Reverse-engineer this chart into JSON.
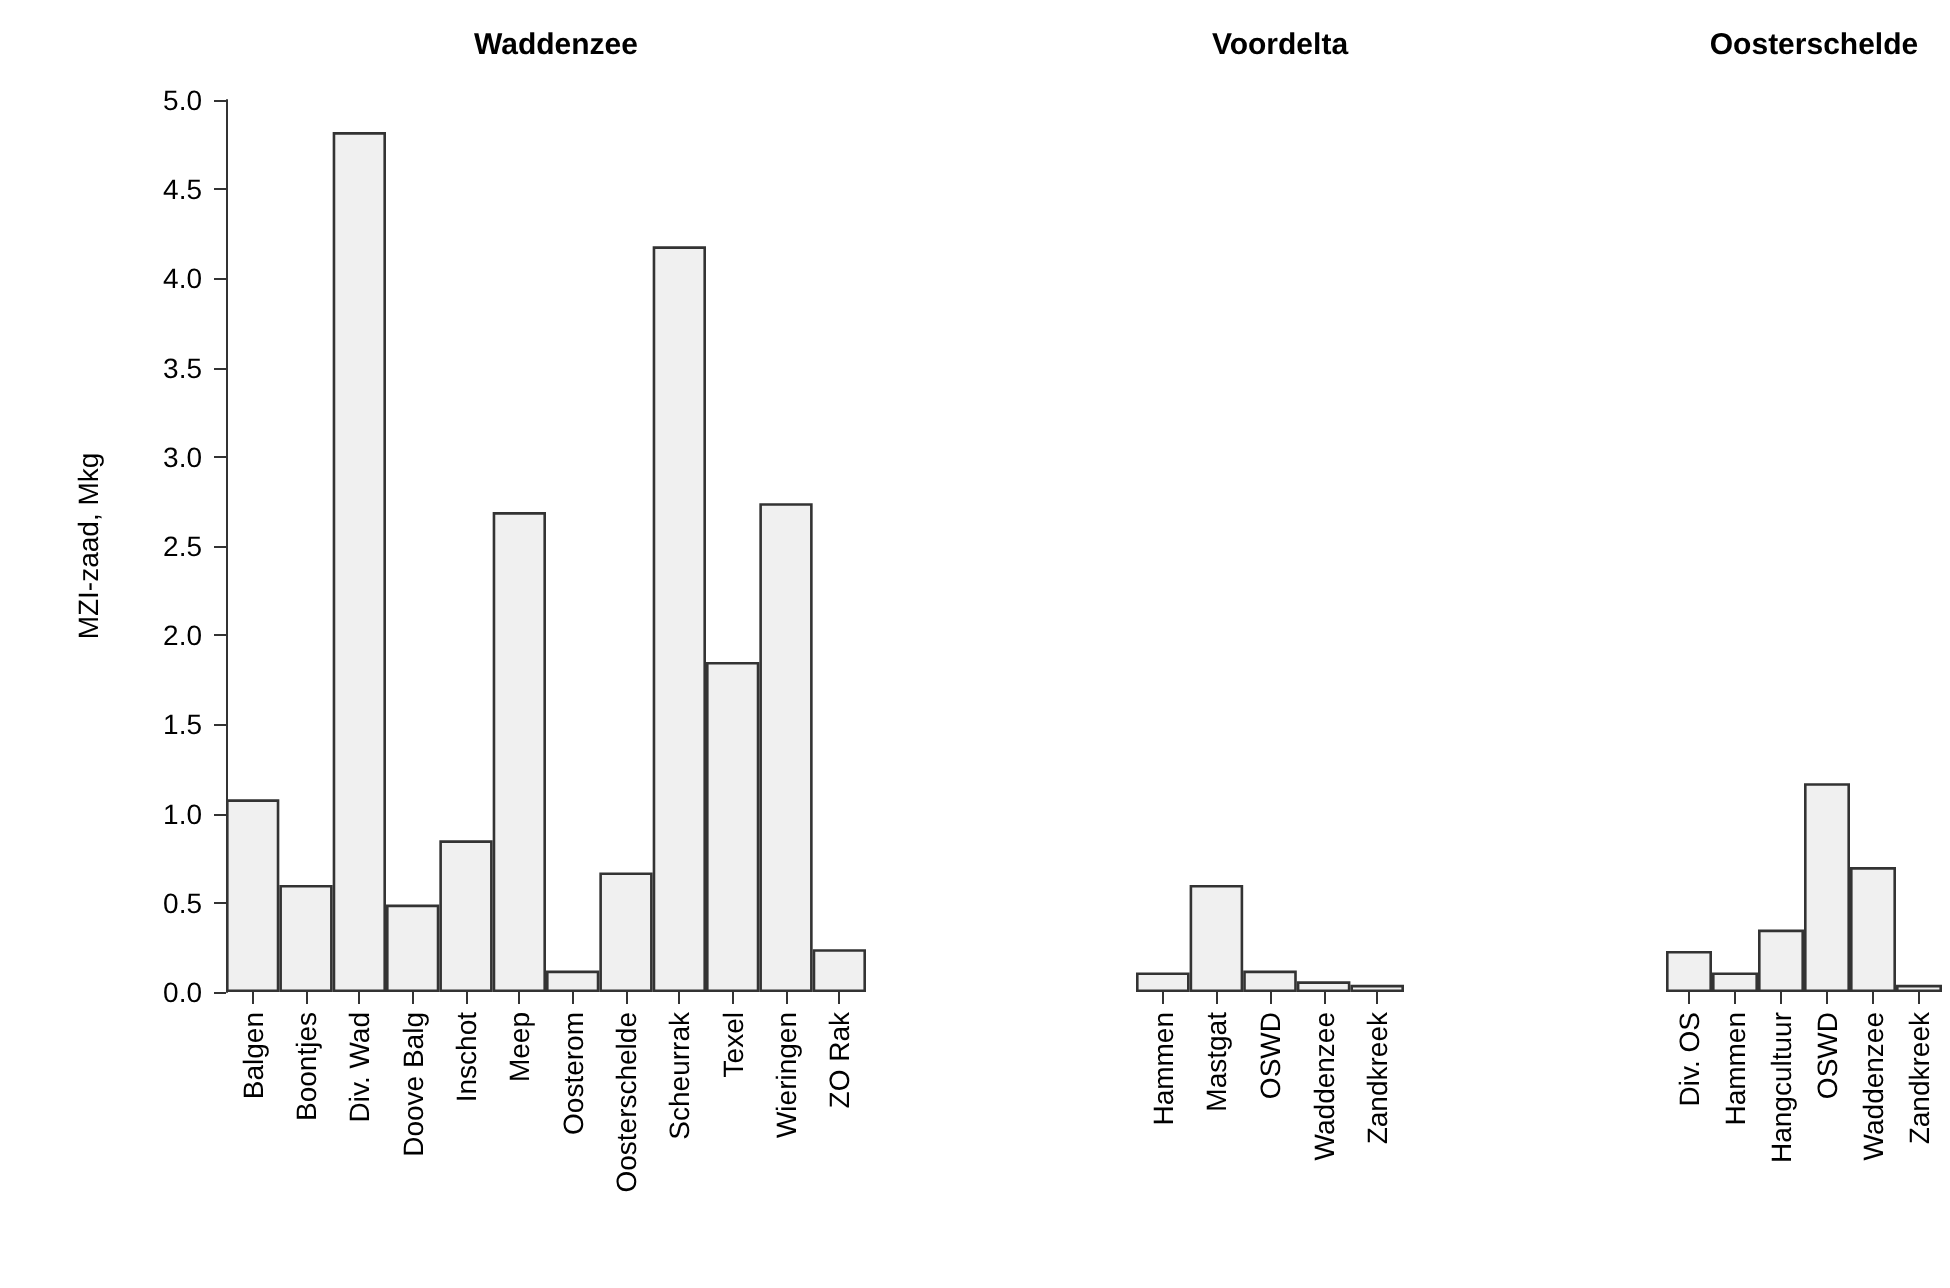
{
  "chart_data": [
    {
      "type": "bar",
      "title": "Waddenzee",
      "ylabel": "MZI-zaad, Mkg",
      "categories": [
        "Balgen",
        "Boontjes",
        "Div. Wad",
        "Doove Balg",
        "Inschot",
        "Meep",
        "Oosterom",
        "Oosterschelde",
        "Scheurrak",
        "Texel",
        "Wieringen",
        "ZO Rak"
      ],
      "values": [
        1.08,
        0.6,
        4.82,
        0.49,
        0.85,
        2.69,
        0.12,
        0.67,
        4.18,
        1.85,
        2.74,
        0.24
      ],
      "color": "#f0f0f0",
      "ylim": [
        0,
        5
      ],
      "yticks": [
        {
          "value": 0,
          "label": "0.0"
        },
        {
          "value": 0.5,
          "label": "0.5"
        },
        {
          "value": 1,
          "label": "1.0"
        },
        {
          "value": 1.5,
          "label": "1.5"
        },
        {
          "value": 2,
          "label": "2.0"
        },
        {
          "value": 2.5,
          "label": "2.5"
        },
        {
          "value": 3,
          "label": "3.0"
        },
        {
          "value": 3.5,
          "label": "3.5"
        },
        {
          "value": 4,
          "label": "4.0"
        },
        {
          "value": 4.5,
          "label": "4.5"
        },
        {
          "value": 5,
          "label": "5.0"
        }
      ]
    },
    {
      "type": "bar",
      "title": "Voordelta",
      "categories": [
        "Hammen",
        "Mastgat",
        "OSWD",
        "Waddenzee",
        "Zandkreek"
      ],
      "values": [
        0.11,
        0.6,
        0.12,
        0.06,
        0.04
      ],
      "color": "#f0f0f0",
      "ylim": [
        0,
        5
      ],
      "tick_labels": "x"
    },
    {
      "type": "bar",
      "title": "Oosterschelde",
      "categories": [
        "Div. OS",
        "Hammen",
        "Hangcultuur",
        "OSWD",
        "Waddenzee",
        "Zandkreek"
      ],
      "values": [
        0.23,
        0.11,
        0.35,
        1.17,
        0.7,
        0.04
      ],
      "color": "#f0f0f0",
      "ylim": [
        0,
        5
      ],
      "tick_labels": "x"
    }
  ]
}
